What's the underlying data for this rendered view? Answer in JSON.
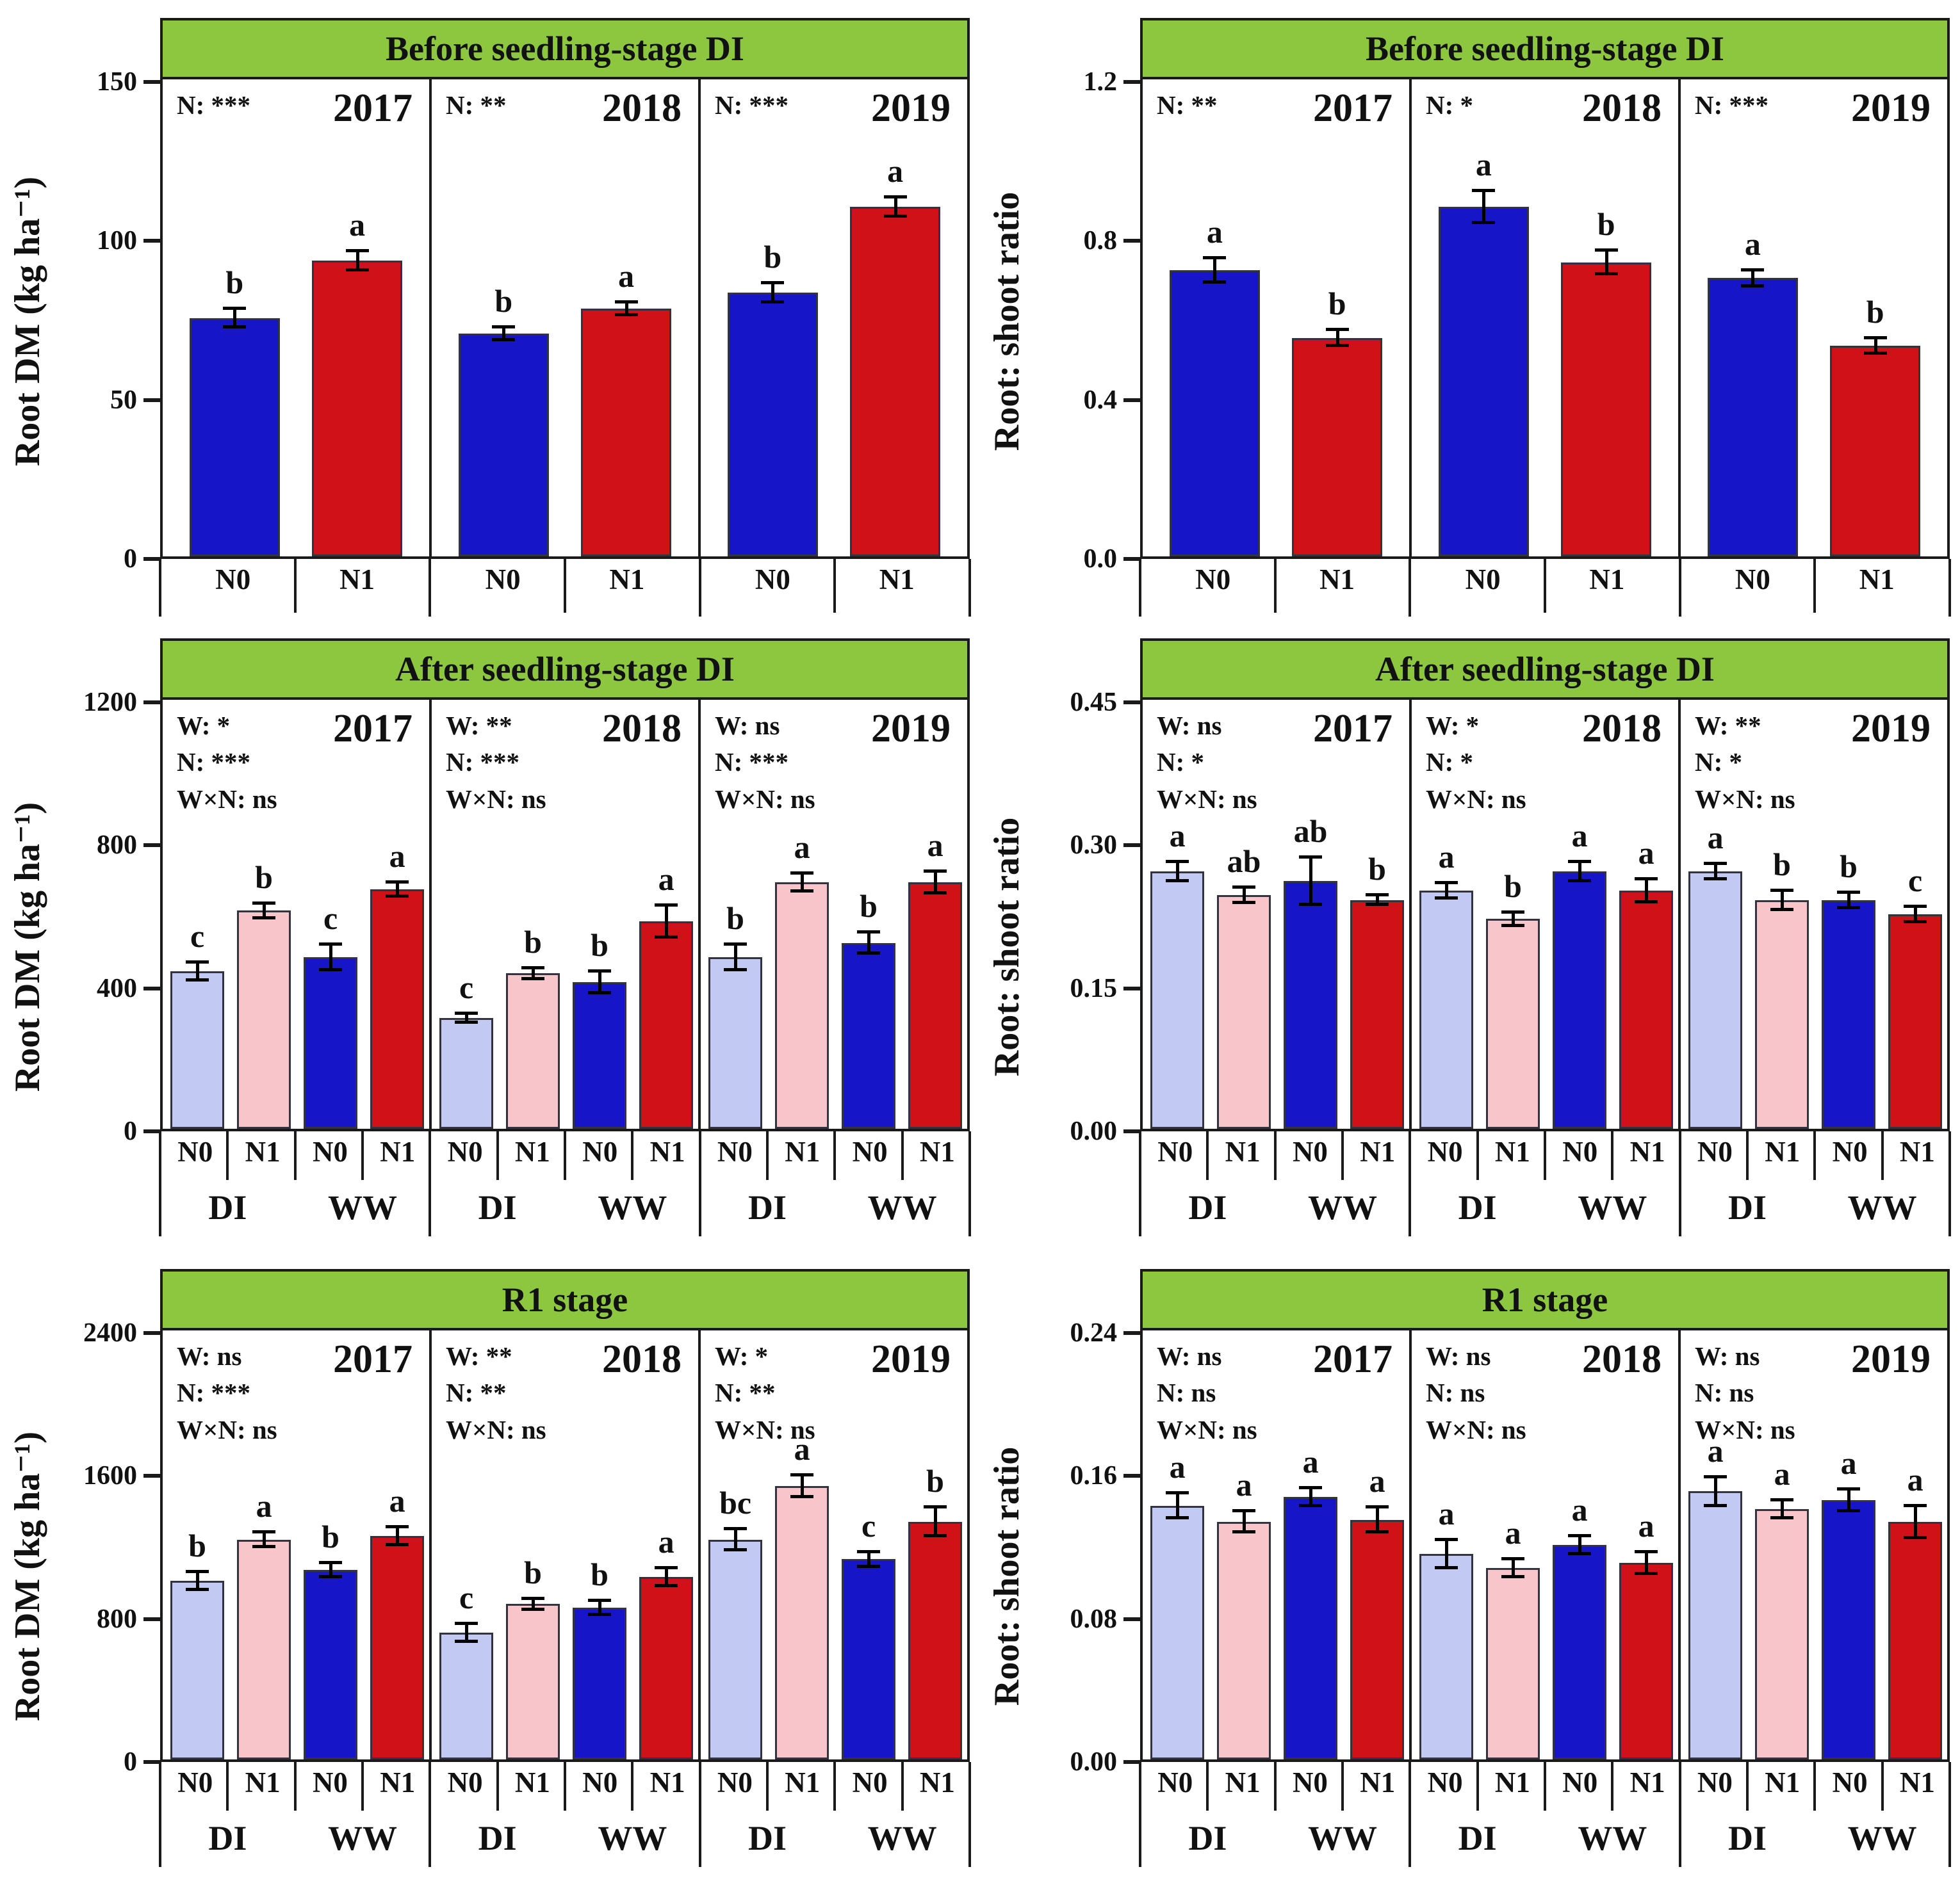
{
  "colors": {
    "header_green": "#8dc63f",
    "dark_blue": "#1616c8",
    "red": "#d01118",
    "light_blue": "#c2c9f3",
    "pink": "#f8c5ca",
    "border": "#1a1a1a"
  },
  "chart_data": [
    {
      "type": "bar",
      "title": "Before seedling-stage DI",
      "ylabel": "Root DM (kg ha⁻¹)",
      "ymax": 150,
      "yticks": [
        {
          "label": "150",
          "value": 150
        },
        {
          "label": "100",
          "value": 100
        },
        {
          "label": "50",
          "value": 50
        },
        {
          "label": "0",
          "value": 0
        }
      ],
      "grouped": false,
      "years": [
        {
          "label": "2017",
          "sig": "N: ***",
          "bars": [
            {
              "group": "",
              "x": "N0",
              "value": 75,
              "err": 3,
              "letter": "b",
              "color": "dark_blue"
            },
            {
              "group": "",
              "x": "N1",
              "value": 93,
              "err": 3,
              "letter": "a",
              "color": "red"
            }
          ]
        },
        {
          "label": "2018",
          "sig": "N: **",
          "bars": [
            {
              "group": "",
              "x": "N0",
              "value": 70,
              "err": 2,
              "letter": "b",
              "color": "dark_blue"
            },
            {
              "group": "",
              "x": "N1",
              "value": 78,
              "err": 2,
              "letter": "a",
              "color": "red"
            }
          ]
        },
        {
          "label": "2019",
          "sig": "N: ***",
          "bars": [
            {
              "group": "",
              "x": "N0",
              "value": 83,
              "err": 3,
              "letter": "b",
              "color": "dark_blue"
            },
            {
              "group": "",
              "x": "N1",
              "value": 110,
              "err": 3,
              "letter": "a",
              "color": "red"
            }
          ]
        }
      ]
    },
    {
      "type": "bar",
      "title": "Before seedling-stage DI",
      "ylabel": "Root: shoot ratio",
      "ymax": 1.2,
      "yticks": [
        {
          "label": "1.2",
          "value": 1.2
        },
        {
          "label": "0.8",
          "value": 0.8
        },
        {
          "label": "0.4",
          "value": 0.4
        },
        {
          "label": "0.0",
          "value": 0
        }
      ],
      "grouped": false,
      "years": [
        {
          "label": "2017",
          "sig": "N: **",
          "bars": [
            {
              "group": "",
              "x": "N0",
              "value": 0.72,
              "err": 0.03,
              "letter": "a",
              "color": "dark_blue"
            },
            {
              "group": "",
              "x": "N1",
              "value": 0.55,
              "err": 0.02,
              "letter": "b",
              "color": "red"
            }
          ]
        },
        {
          "label": "2018",
          "sig": "N: *",
          "bars": [
            {
              "group": "",
              "x": "N0",
              "value": 0.88,
              "err": 0.04,
              "letter": "a",
              "color": "dark_blue"
            },
            {
              "group": "",
              "x": "N1",
              "value": 0.74,
              "err": 0.03,
              "letter": "b",
              "color": "red"
            }
          ]
        },
        {
          "label": "2019",
          "sig": "N: ***",
          "bars": [
            {
              "group": "",
              "x": "N0",
              "value": 0.7,
              "err": 0.02,
              "letter": "a",
              "color": "dark_blue"
            },
            {
              "group": "",
              "x": "N1",
              "value": 0.53,
              "err": 0.02,
              "letter": "b",
              "color": "red"
            }
          ]
        }
      ]
    },
    {
      "type": "bar",
      "title": "After seedling-stage DI",
      "ylabel": "Root DM (kg ha⁻¹)",
      "ymax": 1200,
      "yticks": [
        {
          "label": "1200",
          "value": 1200
        },
        {
          "label": "800",
          "value": 800
        },
        {
          "label": "400",
          "value": 400
        },
        {
          "label": "0",
          "value": 0
        }
      ],
      "grouped": true,
      "group_labels": [
        "DI",
        "WW"
      ],
      "years": [
        {
          "label": "2017",
          "sig": "W: *\nN: ***\nW×N: ns",
          "bars": [
            {
              "group": "DI",
              "x": "N0",
              "value": 440,
              "err": 25,
              "letter": "c",
              "color": "light_blue"
            },
            {
              "group": "DI",
              "x": "N1",
              "value": 610,
              "err": 20,
              "letter": "b",
              "color": "pink"
            },
            {
              "group": "WW",
              "x": "N0",
              "value": 480,
              "err": 35,
              "letter": "c",
              "color": "dark_blue"
            },
            {
              "group": "WW",
              "x": "N1",
              "value": 670,
              "err": 20,
              "letter": "a",
              "color": "red"
            }
          ]
        },
        {
          "label": "2018",
          "sig": "W: **\nN: ***\nW×N: ns",
          "bars": [
            {
              "group": "DI",
              "x": "N0",
              "value": 310,
              "err": 12,
              "letter": "c",
              "color": "light_blue"
            },
            {
              "group": "DI",
              "x": "N1",
              "value": 435,
              "err": 15,
              "letter": "b",
              "color": "pink"
            },
            {
              "group": "WW",
              "x": "N0",
              "value": 410,
              "err": 30,
              "letter": "b",
              "color": "dark_blue"
            },
            {
              "group": "WW",
              "x": "N1",
              "value": 580,
              "err": 45,
              "letter": "a",
              "color": "red"
            }
          ]
        },
        {
          "label": "2019",
          "sig": "W: ns\nN: ***\nW×N: ns",
          "bars": [
            {
              "group": "DI",
              "x": "N0",
              "value": 480,
              "err": 35,
              "letter": "b",
              "color": "light_blue"
            },
            {
              "group": "DI",
              "x": "N1",
              "value": 690,
              "err": 25,
              "letter": "a",
              "color": "pink"
            },
            {
              "group": "WW",
              "x": "N0",
              "value": 520,
              "err": 30,
              "letter": "b",
              "color": "dark_blue"
            },
            {
              "group": "WW",
              "x": "N1",
              "value": 690,
              "err": 30,
              "letter": "a",
              "color": "red"
            }
          ]
        }
      ]
    },
    {
      "type": "bar",
      "title": "After seedling-stage DI",
      "ylabel": "Root: shoot ratio",
      "ymax": 0.45,
      "yticks": [
        {
          "label": "0.45",
          "value": 0.45
        },
        {
          "label": "0.30",
          "value": 0.3
        },
        {
          "label": "0.15",
          "value": 0.15
        },
        {
          "label": "0.00",
          "value": 0
        }
      ],
      "grouped": true,
      "group_labels": [
        "DI",
        "WW"
      ],
      "years": [
        {
          "label": "2017",
          "sig": "W: ns\nN: *\nW×N: ns",
          "bars": [
            {
              "group": "DI",
              "x": "N0",
              "value": 0.27,
              "err": 0.01,
              "letter": "a",
              "color": "light_blue"
            },
            {
              "group": "DI",
              "x": "N1",
              "value": 0.245,
              "err": 0.008,
              "letter": "ab",
              "color": "pink"
            },
            {
              "group": "WW",
              "x": "N0",
              "value": 0.26,
              "err": 0.025,
              "letter": "ab",
              "color": "dark_blue"
            },
            {
              "group": "WW",
              "x": "N1",
              "value": 0.24,
              "err": 0.005,
              "letter": "b",
              "color": "red"
            }
          ]
        },
        {
          "label": "2018",
          "sig": "W: *\nN: *\nW×N: ns",
          "bars": [
            {
              "group": "DI",
              "x": "N0",
              "value": 0.25,
              "err": 0.008,
              "letter": "a",
              "color": "light_blue"
            },
            {
              "group": "DI",
              "x": "N1",
              "value": 0.22,
              "err": 0.007,
              "letter": "b",
              "color": "pink"
            },
            {
              "group": "WW",
              "x": "N0",
              "value": 0.27,
              "err": 0.01,
              "letter": "a",
              "color": "dark_blue"
            },
            {
              "group": "WW",
              "x": "N1",
              "value": 0.25,
              "err": 0.012,
              "letter": "a",
              "color": "red"
            }
          ]
        },
        {
          "label": "2019",
          "sig": "W: **\nN: *\nW×N: ns",
          "bars": [
            {
              "group": "DI",
              "x": "N0",
              "value": 0.27,
              "err": 0.008,
              "letter": "a",
              "color": "light_blue"
            },
            {
              "group": "DI",
              "x": "N1",
              "value": 0.24,
              "err": 0.01,
              "letter": "b",
              "color": "pink"
            },
            {
              "group": "WW",
              "x": "N0",
              "value": 0.24,
              "err": 0.008,
              "letter": "b",
              "color": "dark_blue"
            },
            {
              "group": "WW",
              "x": "N1",
              "value": 0.225,
              "err": 0.008,
              "letter": "c",
              "color": "red"
            }
          ]
        }
      ]
    },
    {
      "type": "bar",
      "title": "R1 stage",
      "ylabel": "Root DM (kg ha⁻¹)",
      "ymax": 2400,
      "yticks": [
        {
          "label": "2400",
          "value": 2400
        },
        {
          "label": "1600",
          "value": 1600
        },
        {
          "label": "800",
          "value": 800
        },
        {
          "label": "0",
          "value": 0
        }
      ],
      "grouped": true,
      "group_labels": [
        "DI",
        "WW"
      ],
      "years": [
        {
          "label": "2017",
          "sig": "W: ns\nN: ***\nW×N: ns",
          "bars": [
            {
              "group": "DI",
              "x": "N0",
              "value": 1000,
              "err": 50,
              "letter": "b",
              "color": "light_blue"
            },
            {
              "group": "DI",
              "x": "N1",
              "value": 1230,
              "err": 40,
              "letter": "a",
              "color": "pink"
            },
            {
              "group": "WW",
              "x": "N0",
              "value": 1060,
              "err": 40,
              "letter": "b",
              "color": "dark_blue"
            },
            {
              "group": "WW",
              "x": "N1",
              "value": 1250,
              "err": 50,
              "letter": "a",
              "color": "red"
            }
          ]
        },
        {
          "label": "2018",
          "sig": "W: **\nN: **\nW×N: ns",
          "bars": [
            {
              "group": "DI",
              "x": "N0",
              "value": 710,
              "err": 50,
              "letter": "c",
              "color": "light_blue"
            },
            {
              "group": "DI",
              "x": "N1",
              "value": 870,
              "err": 30,
              "letter": "b",
              "color": "pink"
            },
            {
              "group": "WW",
              "x": "N0",
              "value": 850,
              "err": 40,
              "letter": "b",
              "color": "dark_blue"
            },
            {
              "group": "WW",
              "x": "N1",
              "value": 1020,
              "err": 50,
              "letter": "a",
              "color": "red"
            }
          ]
        },
        {
          "label": "2019",
          "sig": "W: *\nN: **\nW×N: ns",
          "bars": [
            {
              "group": "DI",
              "x": "N0",
              "value": 1230,
              "err": 60,
              "letter": "bc",
              "color": "light_blue"
            },
            {
              "group": "DI",
              "x": "N1",
              "value": 1530,
              "err": 60,
              "letter": "a",
              "color": "pink"
            },
            {
              "group": "WW",
              "x": "N0",
              "value": 1120,
              "err": 40,
              "letter": "c",
              "color": "dark_blue"
            },
            {
              "group": "WW",
              "x": "N1",
              "value": 1330,
              "err": 80,
              "letter": "b",
              "color": "red"
            }
          ]
        }
      ]
    },
    {
      "type": "bar",
      "title": "R1 stage",
      "ylabel": "Root: shoot ratio",
      "ymax": 0.24,
      "yticks": [
        {
          "label": "0.24",
          "value": 0.24
        },
        {
          "label": "0.16",
          "value": 0.16
        },
        {
          "label": "0.08",
          "value": 0.08
        },
        {
          "label": "0.00",
          "value": 0
        }
      ],
      "grouped": true,
      "group_labels": [
        "DI",
        "WW"
      ],
      "years": [
        {
          "label": "2017",
          "sig": "W: ns\nN: ns\nW×N: ns",
          "bars": [
            {
              "group": "DI",
              "x": "N0",
              "value": 0.142,
              "err": 0.007,
              "letter": "a",
              "color": "light_blue"
            },
            {
              "group": "DI",
              "x": "N1",
              "value": 0.133,
              "err": 0.006,
              "letter": "a",
              "color": "pink"
            },
            {
              "group": "WW",
              "x": "N0",
              "value": 0.147,
              "err": 0.005,
              "letter": "a",
              "color": "dark_blue"
            },
            {
              "group": "WW",
              "x": "N1",
              "value": 0.134,
              "err": 0.007,
              "letter": "a",
              "color": "red"
            }
          ]
        },
        {
          "label": "2018",
          "sig": "W: ns\nN: ns\nW×N: ns",
          "bars": [
            {
              "group": "DI",
              "x": "N0",
              "value": 0.115,
              "err": 0.008,
              "letter": "a",
              "color": "light_blue"
            },
            {
              "group": "DI",
              "x": "N1",
              "value": 0.107,
              "err": 0.005,
              "letter": "a",
              "color": "pink"
            },
            {
              "group": "WW",
              "x": "N0",
              "value": 0.12,
              "err": 0.005,
              "letter": "a",
              "color": "dark_blue"
            },
            {
              "group": "WW",
              "x": "N1",
              "value": 0.11,
              "err": 0.006,
              "letter": "a",
              "color": "red"
            }
          ]
        },
        {
          "label": "2019",
          "sig": "W: ns\nN: ns\nW×N: ns",
          "bars": [
            {
              "group": "DI",
              "x": "N0",
              "value": 0.15,
              "err": 0.008,
              "letter": "a",
              "color": "light_blue"
            },
            {
              "group": "DI",
              "x": "N1",
              "value": 0.14,
              "err": 0.005,
              "letter": "a",
              "color": "pink"
            },
            {
              "group": "WW",
              "x": "N0",
              "value": 0.145,
              "err": 0.006,
              "letter": "a",
              "color": "dark_blue"
            },
            {
              "group": "WW",
              "x": "N1",
              "value": 0.133,
              "err": 0.009,
              "letter": "a",
              "color": "red"
            }
          ]
        }
      ]
    }
  ]
}
